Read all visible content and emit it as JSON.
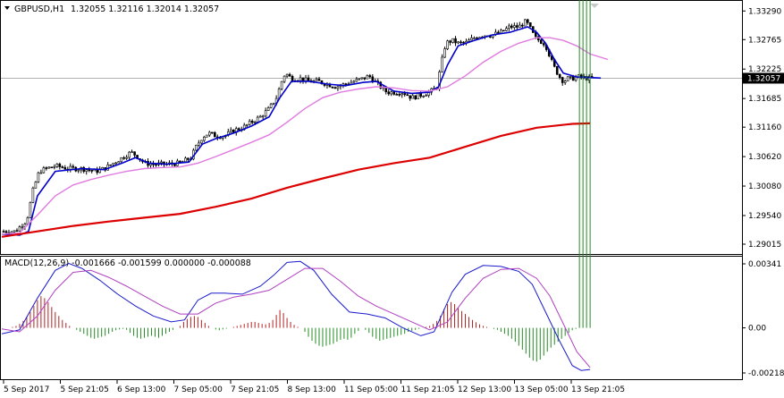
{
  "header": {
    "symbol": "GBPUSD,H1",
    "ohlc": "1.32055 1.32116 1.32014 1.32057"
  },
  "macd_header": {
    "label": "MACD(12,26,9) -0.001666 -0.001599 0.000000 -0.000088"
  },
  "current_price": "1.32057",
  "colors": {
    "ma_fast": "#0000cc",
    "ma_medium": "#e07be0",
    "ma_slow": "#dd0000",
    "hist_positive": "#b22222",
    "hist_negative": "#228b22",
    "macd_line": "#1a1acc",
    "signal_line": "#b03fc0"
  },
  "chart_data": [
    {
      "type": "candlestick",
      "title": "GBPUSD,H1",
      "ylim": [
        1.289,
        1.3336
      ],
      "y_ticks": [
        "1.33290",
        "1.32765",
        "1.32225",
        "1.31685",
        "1.31160",
        "1.30620",
        "1.30080",
        "1.29540",
        "1.29015"
      ],
      "x_ticks": [
        "5 Sep 2017",
        "5 Sep 21:05",
        "6 Sep 13:00",
        "7 Sep 05:00",
        "7 Sep 21:05",
        "8 Sep 13:00",
        "11 Sep 05:00",
        "11 Sep 21:05",
        "12 Sep 13:00",
        "13 Sep 05:00",
        "13 Sep 21:05"
      ],
      "close_trend": [
        [
          0,
          1.2925
        ],
        [
          15,
          1.2925
        ],
        [
          28,
          1.2945
        ],
        [
          35,
          1.3
        ],
        [
          42,
          1.3035
        ],
        [
          50,
          1.304
        ],
        [
          60,
          1.3045
        ],
        [
          75,
          1.304
        ],
        [
          90,
          1.304
        ],
        [
          105,
          1.3035
        ],
        [
          115,
          1.304
        ],
        [
          125,
          1.305
        ],
        [
          135,
          1.306
        ],
        [
          145,
          1.307
        ],
        [
          150,
          1.3065
        ],
        [
          160,
          1.305
        ],
        [
          170,
          1.3048
        ],
        [
          185,
          1.3048
        ],
        [
          200,
          1.305
        ],
        [
          212,
          1.306
        ],
        [
          218,
          1.308
        ],
        [
          225,
          1.3098
        ],
        [
          232,
          1.3105
        ],
        [
          240,
          1.31
        ],
        [
          250,
          1.31
        ],
        [
          260,
          1.311
        ],
        [
          270,
          1.3115
        ],
        [
          280,
          1.3125
        ],
        [
          290,
          1.3135
        ],
        [
          300,
          1.315
        ],
        [
          308,
          1.317
        ],
        [
          314,
          1.32
        ],
        [
          318,
          1.3215
        ],
        [
          325,
          1.3205
        ],
        [
          335,
          1.3205
        ],
        [
          345,
          1.32
        ],
        [
          355,
          1.32
        ],
        [
          365,
          1.3195
        ],
        [
          375,
          1.319
        ],
        [
          385,
          1.3195
        ],
        [
          395,
          1.32
        ],
        [
          405,
          1.3205
        ],
        [
          412,
          1.321
        ],
        [
          418,
          1.32
        ],
        [
          425,
          1.319
        ],
        [
          432,
          1.318
        ],
        [
          440,
          1.318
        ],
        [
          450,
          1.318
        ],
        [
          460,
          1.317
        ],
        [
          470,
          1.3175
        ],
        [
          480,
          1.318
        ],
        [
          488,
          1.319
        ],
        [
          494,
          1.324
        ],
        [
          498,
          1.327
        ],
        [
          505,
          1.3275
        ],
        [
          512,
          1.327
        ],
        [
          520,
          1.327
        ],
        [
          530,
          1.328
        ],
        [
          540,
          1.3285
        ],
        [
          550,
          1.3285
        ],
        [
          560,
          1.329
        ],
        [
          570,
          1.33
        ],
        [
          580,
          1.33
        ],
        [
          588,
          1.331
        ],
        [
          592,
          1.33
        ],
        [
          598,
          1.328
        ],
        [
          603,
          1.3275
        ],
        [
          608,
          1.327
        ],
        [
          612,
          1.326
        ],
        [
          616,
          1.324
        ],
        [
          620,
          1.3225
        ],
        [
          625,
          1.321
        ],
        [
          630,
          1.32
        ],
        [
          635,
          1.3205
        ],
        [
          640,
          1.3205
        ],
        [
          645,
          1.3208
        ],
        [
          650,
          1.3208
        ],
        [
          655,
          1.3206
        ],
        [
          660,
          1.3205
        ],
        [
          663,
          1.3206
        ]
      ],
      "series": [
        {
          "type": "line",
          "x": [
            0,
            20,
            30,
            40,
            60,
            90,
            115,
            135,
            150,
            165,
            185,
            210,
            225,
            240,
            260,
            280,
            300,
            312,
            325,
            345,
            365,
            385,
            405,
            420,
            440,
            460,
            480,
            490,
            500,
            512,
            530,
            550,
            570,
            590,
            600,
            610,
            620,
            630,
            645,
            660,
            672
          ],
          "y": [
            1.292,
            1.2918,
            1.2925,
            1.299,
            1.3035,
            1.304,
            1.3038,
            1.305,
            1.306,
            1.305,
            1.3048,
            1.3052,
            1.3085,
            1.3095,
            1.3105,
            1.3118,
            1.3135,
            1.317,
            1.32,
            1.32,
            1.3195,
            1.3192,
            1.3198,
            1.32,
            1.3182,
            1.3178,
            1.318,
            1.319,
            1.323,
            1.3265,
            1.3275,
            1.3285,
            1.329,
            1.33,
            1.329,
            1.327,
            1.324,
            1.3215,
            1.3208,
            1.3207,
            1.3206
          ]
        },
        {
          "type": "line",
          "x": [
            0,
            20,
            40,
            60,
            80,
            100,
            120,
            140,
            160,
            180,
            200,
            220,
            240,
            260,
            280,
            300,
            320,
            340,
            360,
            380,
            400,
            420,
            440,
            460,
            480,
            500,
            520,
            540,
            560,
            580,
            600,
            615,
            630,
            645,
            660,
            680
          ],
          "y": [
            1.292,
            1.2922,
            1.2955,
            1.299,
            1.301,
            1.302,
            1.3028,
            1.3035,
            1.304,
            1.3042,
            1.3043,
            1.305,
            1.3062,
            1.3075,
            1.3088,
            1.3102,
            1.3125,
            1.315,
            1.317,
            1.318,
            1.3186,
            1.319,
            1.3188,
            1.3183,
            1.3182,
            1.319,
            1.321,
            1.3235,
            1.3255,
            1.327,
            1.328,
            1.328,
            1.3275,
            1.3265,
            1.325,
            1.324
          ]
        },
        {
          "type": "line",
          "x": [
            0,
            40,
            80,
            120,
            160,
            200,
            240,
            280,
            320,
            360,
            400,
            440,
            480,
            520,
            560,
            600,
            640,
            660
          ],
          "y": [
            1.2915,
            1.2925,
            1.2935,
            1.2943,
            1.295,
            1.2957,
            1.297,
            1.2985,
            1.3005,
            1.3022,
            1.3038,
            1.305,
            1.306,
            1.308,
            1.31,
            1.3115,
            1.3122,
            1.3123
          ]
        }
      ]
    },
    {
      "type": "bar",
      "title": "MACD(12,26,9)",
      "ylim": [
        -0.0025,
        0.0035
      ],
      "y_ticks": [
        "0.00341",
        "0.00",
        "-0.002182"
      ],
      "histogram_x": [
        4,
        8,
        12,
        16,
        20,
        24,
        28,
        32,
        36,
        40,
        44,
        48,
        52,
        56,
        60,
        64,
        68,
        72,
        76,
        80,
        84,
        88,
        92,
        96,
        100,
        104,
        108,
        112,
        116,
        120,
        124,
        128,
        132,
        136,
        140,
        144,
        148,
        152,
        156,
        160,
        164,
        168,
        172,
        176,
        180,
        184,
        188,
        192,
        196,
        200,
        204,
        208,
        212,
        216,
        220,
        224,
        228,
        232,
        236,
        240,
        244,
        248,
        252,
        256,
        260,
        264,
        268,
        272,
        276,
        280,
        284,
        288,
        292,
        296,
        300,
        304,
        308,
        312,
        316,
        320,
        324,
        328,
        332,
        336,
        340,
        344,
        348,
        352,
        356,
        360,
        364,
        368,
        372,
        376,
        380,
        384,
        388,
        392,
        396,
        400,
        404,
        408,
        412,
        416,
        420,
        424,
        428,
        432,
        436,
        440,
        444,
        448,
        452,
        456,
        460,
        464,
        468,
        472,
        476,
        480,
        484,
        488,
        492,
        496,
        500,
        504,
        508,
        512,
        516,
        520,
        524,
        528,
        532,
        536,
        540,
        544,
        548,
        552,
        556,
        560,
        564,
        568,
        572,
        576,
        580,
        584,
        588,
        592,
        596,
        600,
        604,
        608,
        612,
        616,
        620,
        624,
        628,
        632,
        636,
        640,
        644,
        648,
        652,
        656,
        660
      ],
      "histogram_values": [
        0.0,
        0.0,
        5e-05,
        0.0001,
        0.0002,
        0.00035,
        0.00055,
        0.0008,
        0.0011,
        0.0014,
        0.0016,
        0.0015,
        0.0013,
        0.00105,
        0.0008,
        0.0006,
        0.0004,
        0.00025,
        0.0001,
        0.0,
        -0.0001,
        -0.0002,
        -0.0003,
        -0.0004,
        -0.0005,
        -0.00055,
        -0.0005,
        -0.00045,
        -0.0004,
        -0.0003,
        -0.0002,
        -0.00012,
        -8e-05,
        -5e-05,
        -0.0001,
        -0.00025,
        -0.0004,
        -0.0005,
        -0.00055,
        -0.0005,
        -0.00045,
        -0.0004,
        -0.00045,
        -0.0005,
        -0.0004,
        -0.0003,
        -0.0002,
        -0.0001,
        0.0,
        0.0001,
        0.0003,
        0.00045,
        0.00055,
        0.0006,
        0.00055,
        0.0004,
        0.00025,
        0.0001,
        0.0,
        -8e-05,
        -0.00012,
        -8e-05,
        -4e-05,
        0.0,
        5e-05,
        0.0001,
        0.00015,
        0.0002,
        0.00025,
        0.0003,
        0.0003,
        0.00025,
        0.0002,
        0.00018,
        0.00025,
        0.0004,
        0.00065,
        0.0009,
        0.00075,
        0.0005,
        0.0003,
        0.00015,
        5e-05,
        0.0,
        -0.0002,
        -0.00045,
        -0.00065,
        -0.0008,
        -0.0009,
        -0.00095,
        -0.0009,
        -0.00085,
        -0.0008,
        -0.0007,
        -0.0006,
        -0.00055,
        -0.0006,
        -0.0005,
        -0.0003,
        -0.00015,
        0.0,
        -0.0001,
        -0.00025,
        -0.00045,
        -0.00055,
        -0.00065,
        -0.0006,
        -0.00055,
        -0.0005,
        -0.00045,
        -0.0004,
        -0.00035,
        -0.0003,
        -0.0002,
        -0.00015,
        -0.0001,
        -5e-05,
        0.0,
        5e-05,
        0.0001,
        0.0002,
        0.00035,
        0.0006,
        0.00095,
        0.0012,
        0.0013,
        0.0012,
        0.001,
        0.00085,
        0.0007,
        0.00055,
        0.0004,
        0.00028,
        0.00018,
        0.0001,
        5e-05,
        0.0,
        -5e-05,
        -0.0001,
        -0.0002,
        -0.0003,
        -0.0004,
        -0.00055,
        -0.0007,
        -0.0009,
        -0.0011,
        -0.0013,
        -0.0015,
        -0.00165,
        -0.0017,
        -0.0016,
        -0.0014,
        -0.0012,
        -0.001,
        -0.00085,
        -0.0007,
        -0.00055,
        -0.0004,
        -0.00025,
        -0.00012,
        -5e-05
      ],
      "series": [
        {
          "type": "line",
          "x": [
            0,
            20,
            40,
            60,
            75,
            90,
            110,
            130,
            150,
            170,
            190,
            205,
            220,
            235,
            250,
            270,
            290,
            305,
            320,
            335,
            350,
            370,
            390,
            410,
            430,
            450,
            470,
            485,
            495,
            505,
            520,
            540,
            560,
            580,
            595,
            610,
            625,
            640,
            650,
            660
          ],
          "y": [
            -0.0003,
            -0.0001,
            0.0015,
            0.0029,
            0.00325,
            0.003,
            0.0024,
            0.0017,
            0.0011,
            0.0006,
            0.0003,
            0.0004,
            0.0014,
            0.00175,
            0.00175,
            0.0017,
            0.0021,
            0.00265,
            0.0033,
            0.00335,
            0.0029,
            0.0017,
            0.0008,
            0.0007,
            0.0005,
            0.0,
            -0.0004,
            -0.0002,
            0.0008,
            0.0018,
            0.0027,
            0.00315,
            0.0031,
            0.00285,
            0.0022,
            0.0008,
            -0.0006,
            -0.0019,
            -0.00215,
            -0.0021
          ]
        },
        {
          "type": "line",
          "x": [
            0,
            20,
            40,
            60,
            80,
            100,
            120,
            140,
            160,
            180,
            200,
            220,
            240,
            260,
            280,
            300,
            320,
            340,
            360,
            380,
            400,
            420,
            440,
            460,
            480,
            500,
            520,
            540,
            560,
            580,
            600,
            615,
            630,
            645,
            660
          ],
          "y": [
            -5e-05,
            -0.0002,
            0.0006,
            0.0019,
            0.0028,
            0.0029,
            0.00255,
            0.0021,
            0.0016,
            0.0011,
            0.0007,
            0.0007,
            0.00125,
            0.00155,
            0.0017,
            0.0019,
            0.00245,
            0.003,
            0.003,
            0.00235,
            0.0016,
            0.0011,
            0.0007,
            0.0003,
            -0.0001,
            0.0003,
            0.0015,
            0.0025,
            0.00295,
            0.003,
            0.0025,
            0.0016,
            0.0002,
            -0.0012,
            -0.002
          ]
        }
      ]
    }
  ]
}
